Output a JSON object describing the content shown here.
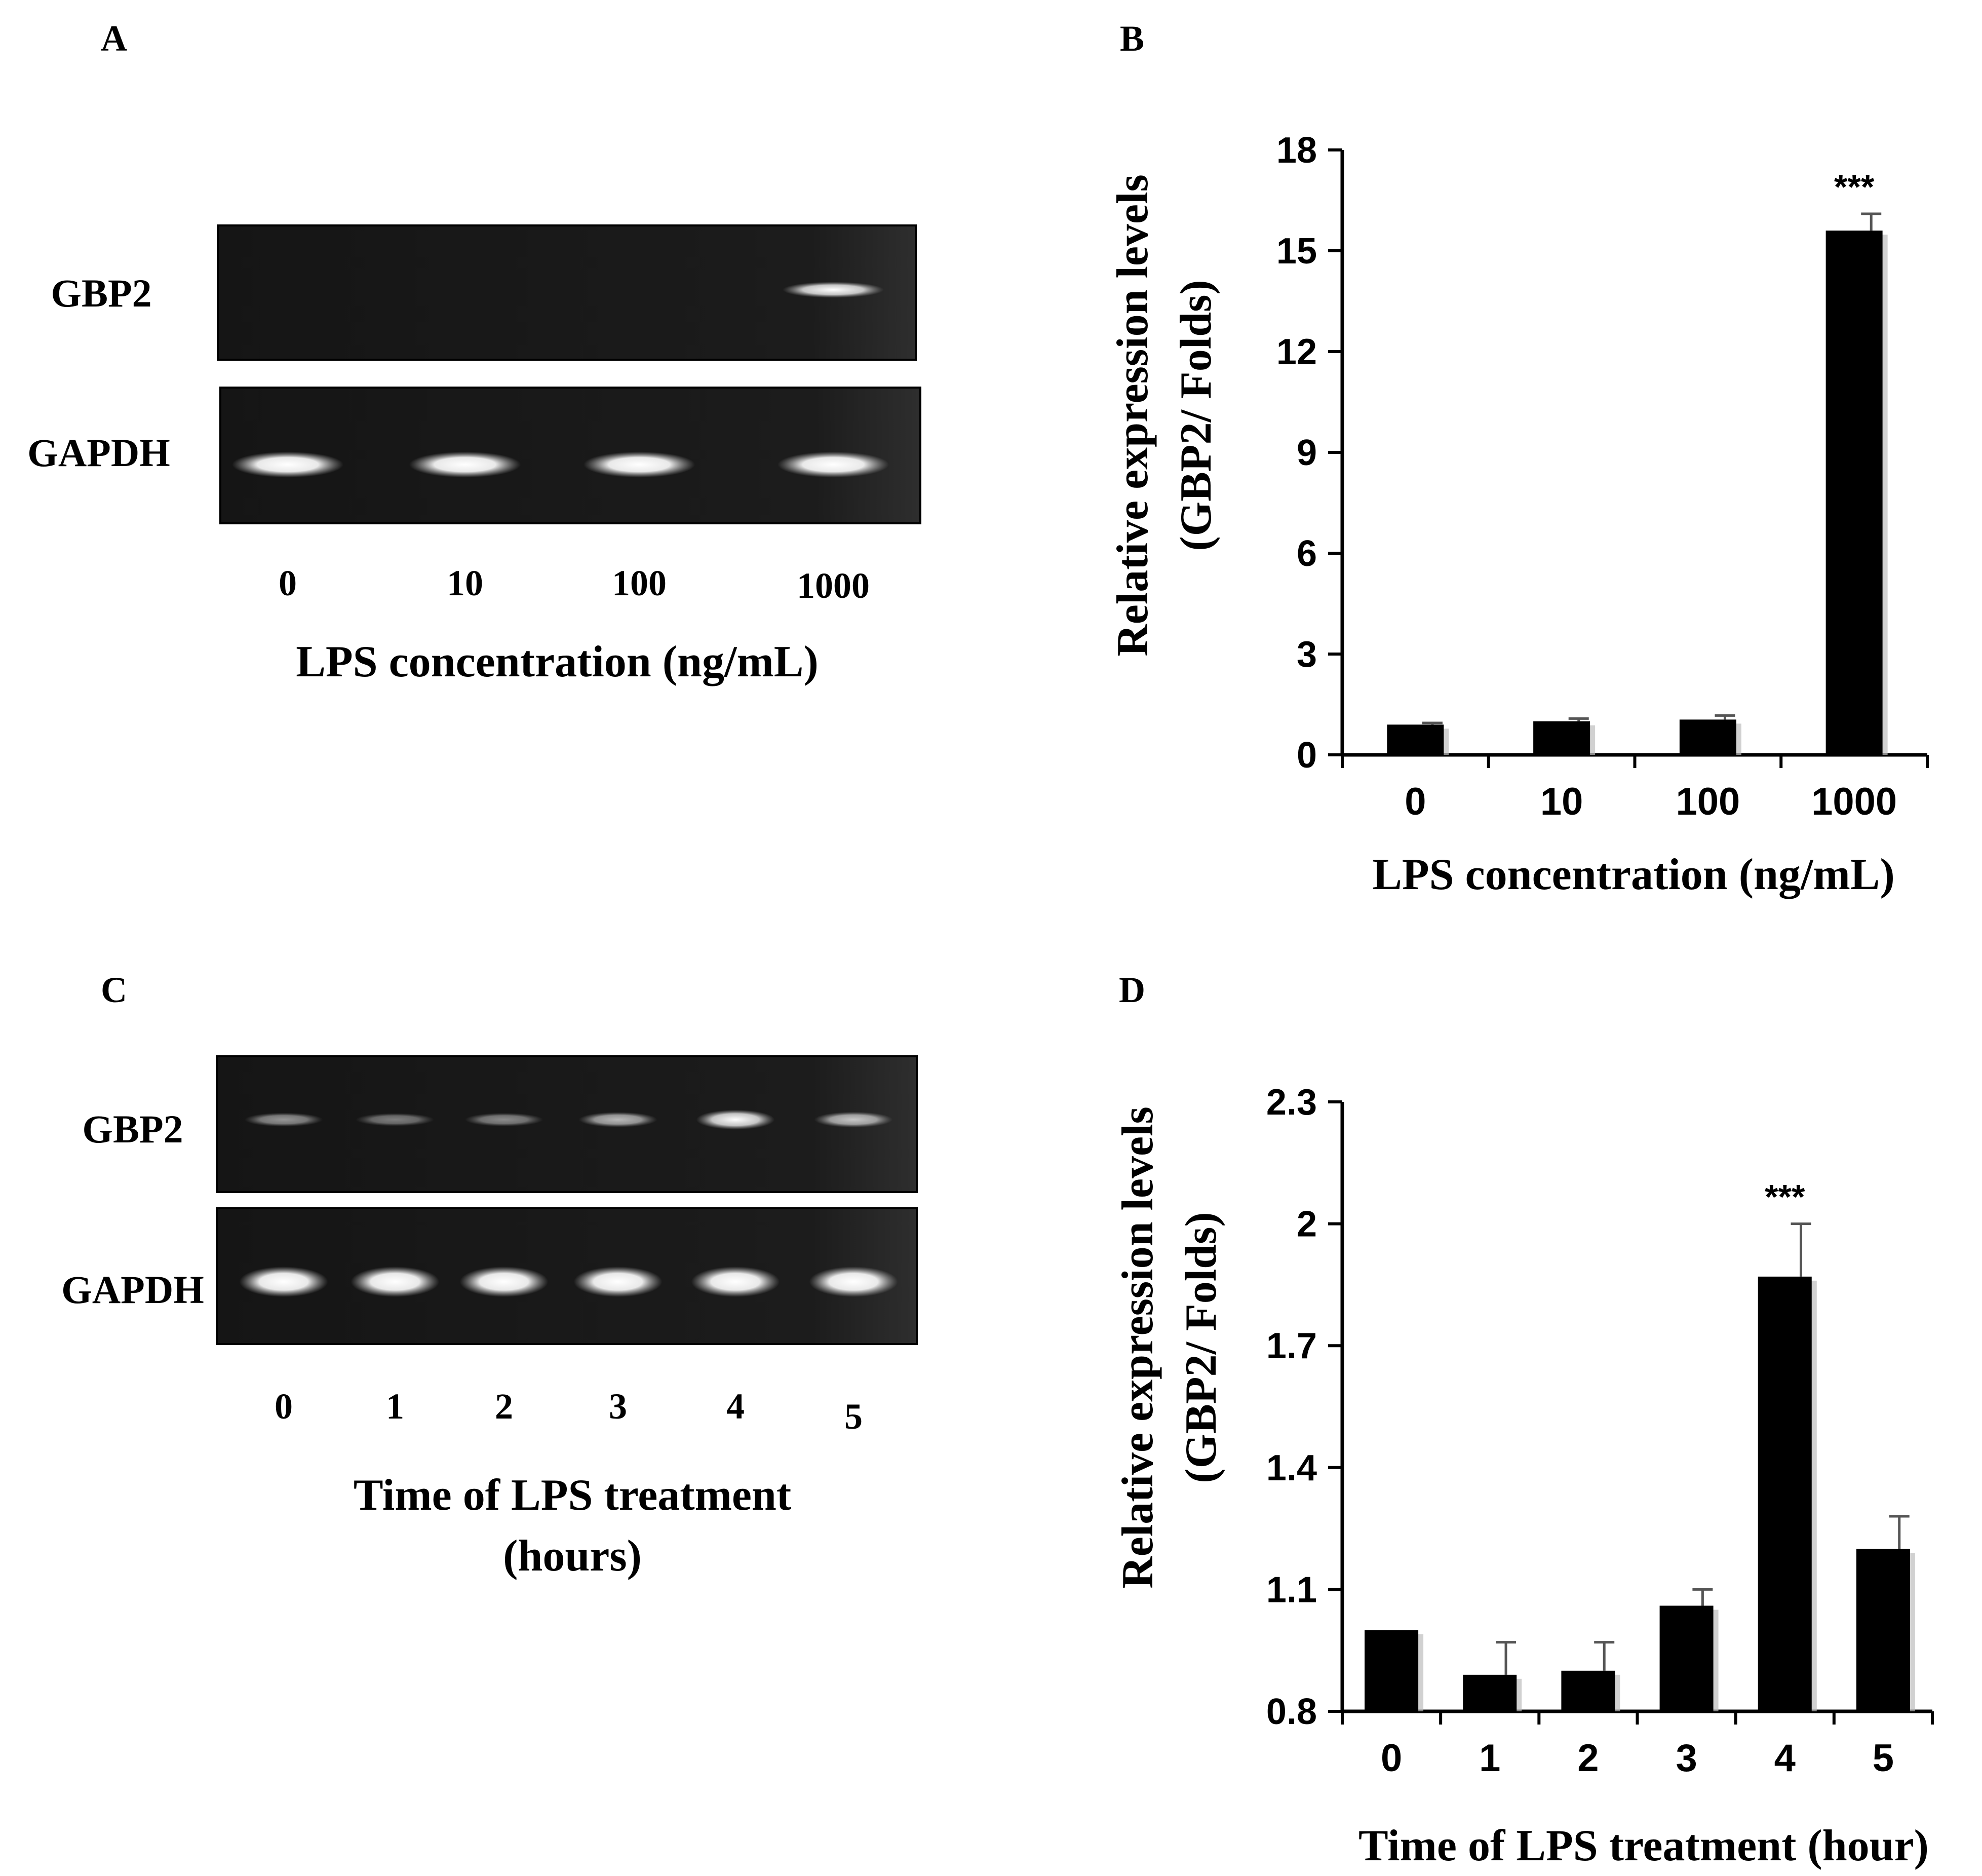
{
  "panel_labels": {
    "a": "A",
    "b": "B",
    "c": "C",
    "d": "D"
  },
  "gel_a": {
    "gene_label": "GBP2",
    "control_label": "GAPDH",
    "lanes": [
      "0",
      "10",
      "100",
      "1000"
    ],
    "gbp2_intensity": [
      0,
      0,
      0,
      0.85
    ],
    "gapdh_intensity": [
      1,
      1,
      1,
      1
    ],
    "xlabel": "LPS concentration (ng/mL)"
  },
  "gel_c": {
    "gene_label": "GBP2",
    "control_label": "GAPDH",
    "lanes": [
      "0",
      "1",
      "2",
      "3",
      "4",
      "5"
    ],
    "gbp2_intensity": [
      0.3,
      0.2,
      0.25,
      0.45,
      0.95,
      0.5
    ],
    "gapdh_intensity": [
      1,
      1,
      1,
      1,
      1,
      1
    ],
    "xlabel_line1": "Time of LPS treatment",
    "xlabel_line2": "(hours)"
  },
  "chart_data": [
    {
      "type": "bar",
      "panel": "B",
      "categories": [
        "0",
        "10",
        "100",
        "1000"
      ],
      "values": [
        0.9,
        1.0,
        1.05,
        15.6
      ],
      "errors": [
        0.05,
        0.08,
        0.12,
        0.5
      ],
      "significance": [
        "",
        "",
        "",
        "***"
      ],
      "ylim": [
        0,
        18
      ],
      "yticks": [
        "0",
        "3",
        "6",
        "9",
        "12",
        "15",
        "18"
      ],
      "ylabel_line1": "Relative expression levels",
      "ylabel_line2": "(GBP2/ Folds)",
      "xlabel": "LPS concentration (ng/mL)",
      "bar_color": "#000000"
    },
    {
      "type": "bar",
      "panel": "D",
      "categories": [
        "0",
        "1",
        "2",
        "3",
        "4",
        "5"
      ],
      "values": [
        1.0,
        0.89,
        0.9,
        1.06,
        1.87,
        1.2
      ],
      "errors": [
        0.0,
        0.08,
        0.07,
        0.04,
        0.13,
        0.08
      ],
      "significance": [
        "",
        "",
        "",
        "",
        "***",
        ""
      ],
      "ylim": [
        0.8,
        2.3
      ],
      "yticks": [
        "0.8",
        "1.1",
        "1.4",
        "1.7",
        "2",
        "2.3"
      ],
      "ylabel_line1": "Relative expression levels",
      "ylabel_line2": "(GBP2/ Folds)",
      "xlabel": "Time of LPS treatment (hour)",
      "bar_color": "#000000"
    }
  ]
}
